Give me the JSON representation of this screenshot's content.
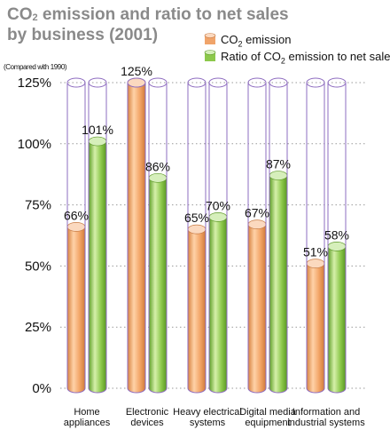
{
  "chart_data": {
    "type": "bar",
    "title_line1_a": "CO",
    "title_line1_sub": "2",
    "title_line1_b": " emission and ratio to net sales",
    "title_line2": "by business (2001)",
    "note": "(Compared with 1990)",
    "categories": [
      [
        "Home",
        "appliances"
      ],
      [
        "Electronic",
        "devices"
      ],
      [
        "Heavy electrical",
        "systems"
      ],
      [
        "Digital media",
        "equipment"
      ],
      [
        "Information and",
        "industrial systems"
      ]
    ],
    "series": [
      {
        "legend_a": "CO",
        "legend_sub": "2",
        "legend_b": " emission",
        "color": "#f0a46a",
        "values": [
          66,
          125,
          65,
          67,
          51
        ],
        "labels": [
          "66%",
          "125%",
          "65%",
          "67%",
          "51%"
        ]
      },
      {
        "legend_a": "Ratio of CO",
        "legend_sub": "2",
        "legend_b": " emission to net sales",
        "color": "#8cc84b",
        "values": [
          101,
          86,
          70,
          87,
          58
        ],
        "labels": [
          "101%",
          "86%",
          "70%",
          "87%",
          "58%"
        ]
      }
    ],
    "yticks": [
      "0%",
      "25%",
      "50%",
      "75%",
      "100%",
      "125%"
    ],
    "ytick_values": [
      0,
      25,
      50,
      75,
      100,
      125
    ],
    "ylim": [
      0,
      125
    ],
    "grid": true,
    "legend_position": "top-right",
    "cylinder_outline_color": "#8e6cc0"
  }
}
